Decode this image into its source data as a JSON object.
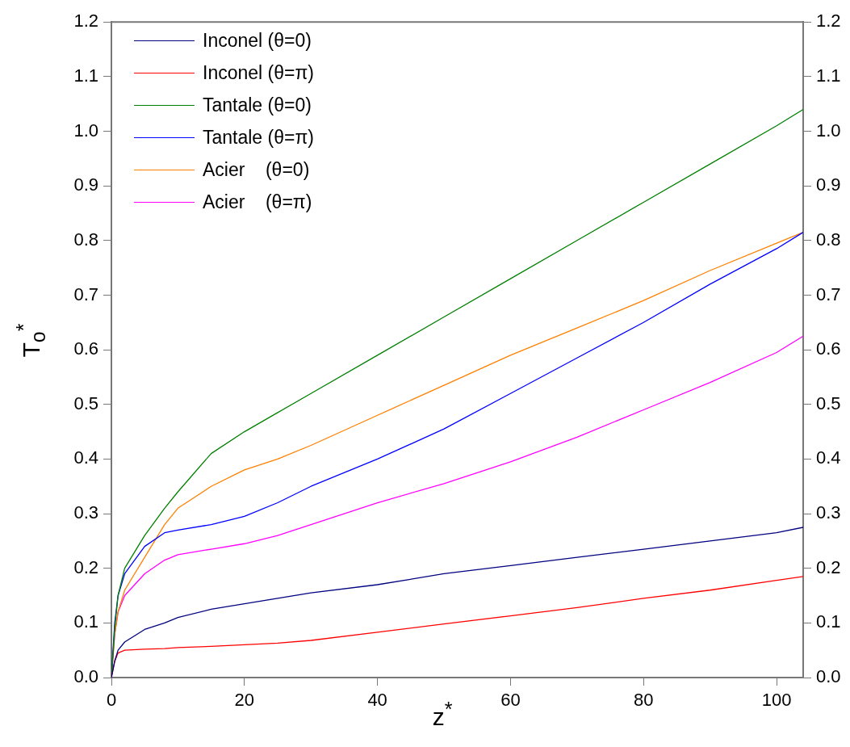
{
  "chart_data": {
    "type": "line",
    "xlabel": "z$^{*}$",
    "ylabel": "T$_{o}$$^{*}$",
    "x": [
      0,
      0.5,
      1,
      2,
      5,
      8,
      10,
      15,
      20,
      25,
      30,
      40,
      50,
      60,
      70,
      80,
      90,
      100,
      104
    ],
    "series": [
      {
        "name": "Inconel (θ=0)",
        "color": "#000080",
        "values": [
          0,
          0.03,
          0.05,
          0.065,
          0.088,
          0.1,
          0.11,
          0.125,
          0.135,
          0.145,
          0.155,
          0.17,
          0.19,
          0.205,
          0.22,
          0.235,
          0.25,
          0.265,
          0.275
        ]
      },
      {
        "name": "Inconel (θ=π)",
        "color": "#ff0000",
        "values": [
          0,
          0.03,
          0.045,
          0.05,
          0.052,
          0.053,
          0.055,
          0.057,
          0.06,
          0.063,
          0.068,
          0.083,
          0.098,
          0.113,
          0.128,
          0.145,
          0.16,
          0.178,
          0.185
        ]
      },
      {
        "name": "Tantale (θ=0)",
        "color": "#008000",
        "values": [
          0,
          0.09,
          0.15,
          0.2,
          0.26,
          0.31,
          0.34,
          0.41,
          0.45,
          0.485,
          0.52,
          0.59,
          0.66,
          0.73,
          0.8,
          0.87,
          0.94,
          1.01,
          1.04
        ]
      },
      {
        "name": "Tantale (θ=π)",
        "color": "#0000ff",
        "values": [
          0,
          0.1,
          0.15,
          0.19,
          0.24,
          0.265,
          0.27,
          0.28,
          0.295,
          0.32,
          0.35,
          0.4,
          0.455,
          0.52,
          0.585,
          0.65,
          0.72,
          0.785,
          0.815
        ]
      },
      {
        "name": "Acier    (θ=0)",
        "color": "#ff8000",
        "values": [
          0,
          0.08,
          0.12,
          0.16,
          0.22,
          0.28,
          0.31,
          0.35,
          0.38,
          0.4,
          0.425,
          0.48,
          0.535,
          0.59,
          0.64,
          0.69,
          0.745,
          0.795,
          0.815
        ]
      },
      {
        "name": "Acier    (θ=π)",
        "color": "#ff00ff",
        "values": [
          0,
          0.08,
          0.12,
          0.15,
          0.19,
          0.215,
          0.225,
          0.235,
          0.245,
          0.26,
          0.28,
          0.32,
          0.355,
          0.395,
          0.44,
          0.49,
          0.54,
          0.595,
          0.625
        ]
      }
    ],
    "xlim": [
      0,
      104
    ],
    "xticks": [
      0,
      20,
      40,
      60,
      80,
      100
    ],
    "ylim": [
      0,
      1.2
    ],
    "yticks": [
      {
        "value": 0,
        "label": "0.0"
      },
      0.1,
      0.2,
      0.3,
      0.4,
      0.5,
      0.6,
      0.7,
      0.8,
      0.9,
      {
        "value": 1,
        "label": "1.0"
      },
      1.1,
      1.2
    ],
    "y2lim": [
      0,
      1.2
    ],
    "y2ticks": [
      {
        "value": 0,
        "label": "0.0"
      },
      0.1,
      0.2,
      0.3,
      0.4,
      0.5,
      0.6,
      0.7,
      0.8,
      0.9,
      {
        "value": 1,
        "label": "1.0"
      },
      1.1,
      1.2
    ],
    "legend": "top left",
    "grid": false,
    "marker": "none",
    "line_style": "solid"
  }
}
